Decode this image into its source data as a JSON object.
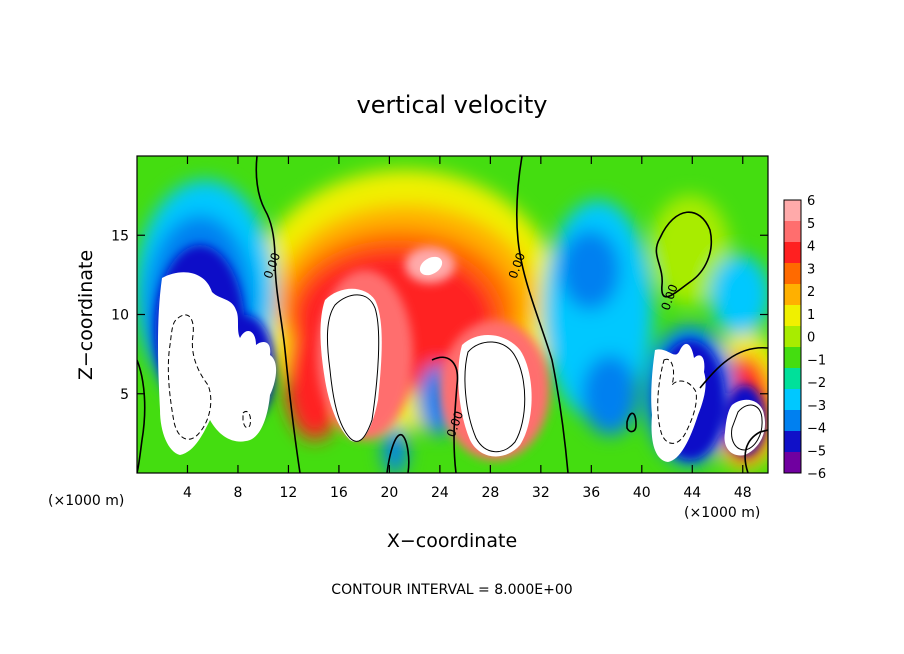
{
  "chart_data": {
    "type": "heatmap",
    "title": "vertical velocity",
    "xlabel": "X−coordinate",
    "ylabel": "Z−coordinate",
    "x_unit": "(×1000 m)",
    "x_unit_right": "(×1000 m)",
    "footer": "CONTOUR INTERVAL = 8.000E+00",
    "xlim": [
      0,
      50
    ],
    "ylim": [
      0,
      20
    ],
    "x_ticks": [
      4,
      8,
      12,
      16,
      20,
      24,
      28,
      32,
      36,
      40,
      44,
      48
    ],
    "y_ticks": [
      5,
      10,
      15
    ],
    "colorbar": {
      "labels": [
        "6",
        "5",
        "4",
        "3",
        "2",
        "1",
        "0",
        "−1",
        "−2",
        "−3",
        "−4",
        "−5",
        "−6"
      ],
      "colors": [
        "#ffaaaa",
        "#ff6e6e",
        "#ff2020",
        "#ff6a00",
        "#ffb000",
        "#f0f000",
        "#a8ec00",
        "#44dd10",
        "#00e09a",
        "#00c8ff",
        "#0080f0",
        "#1010c8",
        "#7000a0"
      ]
    },
    "contour_labels": [
      {
        "text": "0.00",
        "x": 11.0,
        "z": 13.0
      },
      {
        "text": "0.00",
        "x": 30.4,
        "z": 13.0
      },
      {
        "text": "0.00",
        "x": 25.5,
        "z": 3.0
      },
      {
        "text": "0.00",
        "x": 42.5,
        "z": 11.0
      }
    ],
    "features": [
      {
        "kind": "updraft",
        "x": 26.6,
        "z": 8.0,
        "min": 4.5
      },
      {
        "kind": "updraft",
        "x": 18.8,
        "z": 10.0,
        "min": 4.5
      },
      {
        "kind": "updraft",
        "x": 23.5,
        "z": 14.0,
        "min": 4.0
      },
      {
        "kind": "downdraft",
        "x": 6.0,
        "z": 7.0,
        "max": -6.0
      },
      {
        "kind": "downdraft",
        "x": 42.5,
        "z": 5.0,
        "max": -6.0
      },
      {
        "kind": "downdraft",
        "x": 48.4,
        "z": 3.0,
        "max": -6.0
      }
    ]
  }
}
